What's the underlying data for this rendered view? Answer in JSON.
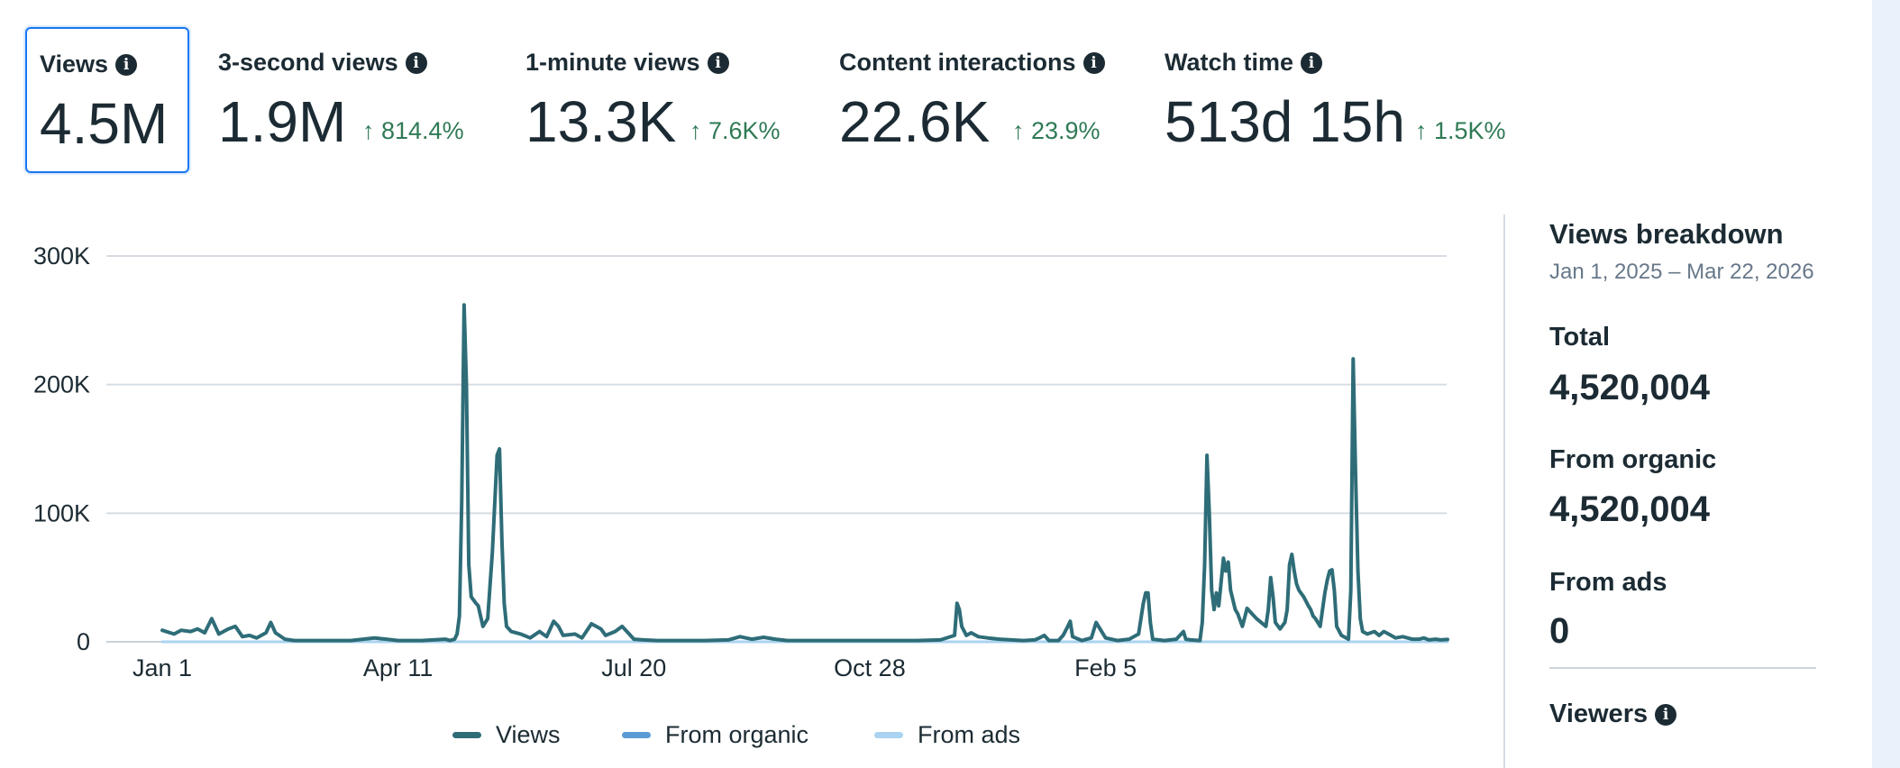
{
  "metrics": [
    {
      "label": "Views",
      "value": "4.5M",
      "change": ""
    },
    {
      "label": "3-second views",
      "value": "1.9M",
      "change": "↑ 814.4%"
    },
    {
      "label": "1-minute views",
      "value": "13.3K",
      "change": "↑ 7.6K%"
    },
    {
      "label": "Content interactions",
      "value": "22.6K",
      "change": "↑ 23.9%"
    },
    {
      "label": "Watch time",
      "value": "513d 15h",
      "change": "↑ 1.5K%"
    }
  ],
  "colors": {
    "views": "#2e6d78",
    "organic": "#5b9bd5",
    "ads": "#a9d3f0",
    "gain": "#2f7a55",
    "selected": "#1877f2"
  },
  "chart_data": {
    "type": "line",
    "title": "",
    "xlabel": "",
    "ylabel": "",
    "ylim": [
      0,
      300000
    ],
    "yticks": [
      0,
      100000,
      200000,
      300000
    ],
    "ytick_labels": [
      "0",
      "100K",
      "200K",
      "300K"
    ],
    "x_tick_labels": [
      "Jan 1",
      "Apr 11",
      "Jul 20",
      "Oct 28",
      "Feb 5"
    ],
    "x_tick_index": [
      0,
      100,
      200,
      300,
      400
    ],
    "legend": [
      "Views",
      "From organic",
      "From ads"
    ],
    "series": [
      {
        "name": "Views",
        "points": [
          [
            0,
            9000
          ],
          [
            5,
            6000
          ],
          [
            8,
            9000
          ],
          [
            12,
            8000
          ],
          [
            15,
            10000
          ],
          [
            18,
            7000
          ],
          [
            21,
            18000
          ],
          [
            24,
            6000
          ],
          [
            28,
            10000
          ],
          [
            31,
            12000
          ],
          [
            34,
            4000
          ],
          [
            37,
            5000
          ],
          [
            40,
            3000
          ],
          [
            44,
            7000
          ],
          [
            46,
            15000
          ],
          [
            48,
            7000
          ],
          [
            52,
            2000
          ],
          [
            56,
            1000
          ],
          [
            60,
            1000
          ],
          [
            70,
            1000
          ],
          [
            80,
            1000
          ],
          [
            90,
            3000
          ],
          [
            95,
            2000
          ],
          [
            100,
            1000
          ],
          [
            110,
            1000
          ],
          [
            120,
            2000
          ],
          [
            122,
            1000
          ],
          [
            124,
            2000
          ],
          [
            125,
            6000
          ],
          [
            126,
            20000
          ],
          [
            127,
            110000
          ],
          [
            128,
            262000
          ],
          [
            129,
            200000
          ],
          [
            130,
            60000
          ],
          [
            131,
            35000
          ],
          [
            133,
            30000
          ],
          [
            134,
            28000
          ],
          [
            136,
            12000
          ],
          [
            138,
            18000
          ],
          [
            140,
            70000
          ],
          [
            142,
            145000
          ],
          [
            143,
            150000
          ],
          [
            144,
            80000
          ],
          [
            145,
            30000
          ],
          [
            146,
            12000
          ],
          [
            148,
            8000
          ],
          [
            152,
            6000
          ],
          [
            156,
            3000
          ],
          [
            160,
            8000
          ],
          [
            163,
            4000
          ],
          [
            166,
            16000
          ],
          [
            168,
            12000
          ],
          [
            170,
            5000
          ],
          [
            175,
            6000
          ],
          [
            178,
            3000
          ],
          [
            182,
            14000
          ],
          [
            186,
            10000
          ],
          [
            188,
            5000
          ],
          [
            192,
            8000
          ],
          [
            195,
            12000
          ],
          [
            198,
            6000
          ],
          [
            200,
            2000
          ],
          [
            204,
            1500
          ],
          [
            210,
            1000
          ],
          [
            220,
            1000
          ],
          [
            230,
            1000
          ],
          [
            240,
            1500
          ],
          [
            245,
            4000
          ],
          [
            250,
            2000
          ],
          [
            255,
            3500
          ],
          [
            260,
            2000
          ],
          [
            265,
            1000
          ],
          [
            270,
            1000
          ],
          [
            280,
            1000
          ],
          [
            300,
            1000
          ],
          [
            320,
            1000
          ],
          [
            330,
            1500
          ],
          [
            336,
            5000
          ],
          [
            337,
            30000
          ],
          [
            338,
            25000
          ],
          [
            339,
            12000
          ],
          [
            341,
            5000
          ],
          [
            343,
            7000
          ],
          [
            346,
            4000
          ],
          [
            350,
            3000
          ],
          [
            355,
            2000
          ],
          [
            360,
            1500
          ],
          [
            365,
            1000
          ],
          [
            370,
            1500
          ],
          [
            372,
            3000
          ],
          [
            374,
            5000
          ],
          [
            376,
            1000
          ],
          [
            380,
            1000
          ],
          [
            382,
            5000
          ],
          [
            384,
            12000
          ],
          [
            385,
            16000
          ],
          [
            386,
            4000
          ],
          [
            390,
            1000
          ],
          [
            394,
            3000
          ],
          [
            396,
            15000
          ],
          [
            398,
            9000
          ],
          [
            400,
            3000
          ],
          [
            405,
            1000
          ],
          [
            410,
            2000
          ],
          [
            414,
            6000
          ],
          [
            416,
            30000
          ],
          [
            417,
            38000
          ],
          [
            418,
            38000
          ],
          [
            419,
            15000
          ],
          [
            420,
            2000
          ],
          [
            425,
            1000
          ],
          [
            430,
            2000
          ],
          [
            433,
            8000
          ],
          [
            434,
            2000
          ],
          [
            436,
            1500
          ],
          [
            440,
            1000
          ],
          [
            441,
            15000
          ],
          [
            442,
            60000
          ],
          [
            443,
            145000
          ],
          [
            444,
            100000
          ],
          [
            445,
            40000
          ],
          [
            446,
            25000
          ],
          [
            447,
            38000
          ],
          [
            448,
            28000
          ],
          [
            450,
            65000
          ],
          [
            451,
            55000
          ],
          [
            452,
            62000
          ],
          [
            453,
            40000
          ],
          [
            455,
            25000
          ],
          [
            456,
            22000
          ],
          [
            458,
            12000
          ],
          [
            460,
            26000
          ],
          [
            462,
            22000
          ],
          [
            464,
            18000
          ],
          [
            466,
            15000
          ],
          [
            468,
            12000
          ],
          [
            469,
            25000
          ],
          [
            470,
            50000
          ],
          [
            471,
            35000
          ],
          [
            472,
            15000
          ],
          [
            474,
            10000
          ],
          [
            476,
            15000
          ],
          [
            477,
            25000
          ],
          [
            478,
            60000
          ],
          [
            479,
            68000
          ],
          [
            480,
            55000
          ],
          [
            481,
            45000
          ],
          [
            482,
            40000
          ],
          [
            484,
            35000
          ],
          [
            486,
            28000
          ],
          [
            487,
            25000
          ],
          [
            488,
            20000
          ],
          [
            489,
            18000
          ],
          [
            491,
            12000
          ],
          [
            492,
            25000
          ],
          [
            493,
            38000
          ],
          [
            494,
            48000
          ],
          [
            495,
            55000
          ],
          [
            496,
            56000
          ],
          [
            497,
            40000
          ],
          [
            498,
            12000
          ],
          [
            500,
            5000
          ],
          [
            502,
            3000
          ],
          [
            503,
            2000
          ],
          [
            504,
            40000
          ],
          [
            505,
            220000
          ],
          [
            506,
            130000
          ],
          [
            507,
            55000
          ],
          [
            508,
            18000
          ],
          [
            509,
            8000
          ],
          [
            511,
            6000
          ],
          [
            514,
            8000
          ],
          [
            516,
            5000
          ],
          [
            518,
            8000
          ],
          [
            520,
            6000
          ],
          [
            523,
            3000
          ],
          [
            526,
            4000
          ],
          [
            530,
            2000
          ],
          [
            533,
            2000
          ],
          [
            535,
            3000
          ],
          [
            537,
            1500
          ],
          [
            540,
            2000
          ],
          [
            542,
            1500
          ],
          [
            545,
            1800
          ]
        ]
      },
      {
        "name": "From organic",
        "points": []
      },
      {
        "name": "From ads",
        "points": [
          [
            0,
            0
          ],
          [
            545,
            0
          ]
        ]
      }
    ]
  },
  "breakdown": {
    "title": "Views breakdown",
    "date_range": "Jan 1, 2025 – Mar 22, 2026",
    "total_label": "Total",
    "total_value": "4,520,004",
    "organic_label": "From organic",
    "organic_value": "4,520,004",
    "ads_label": "From ads",
    "ads_value": "0",
    "viewers_label": "Viewers"
  }
}
